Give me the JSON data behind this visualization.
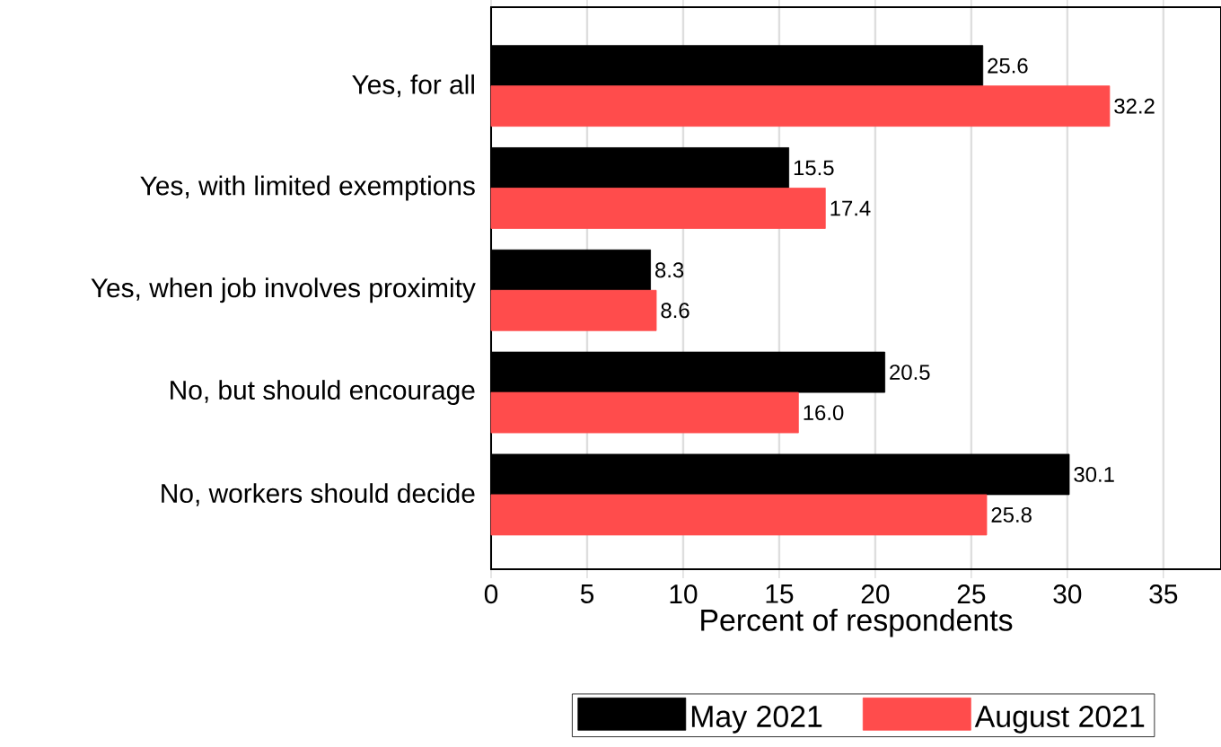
{
  "chart_data": {
    "type": "bar",
    "orientation": "horizontal",
    "xlabel": "Percent of respondents",
    "categories": [
      "Yes, for all",
      "Yes, with limited exemptions",
      "Yes, when job involves proximity",
      "No, but should encourage",
      "No, workers should decide"
    ],
    "series": [
      {
        "name": "May 2021",
        "color": "#000000",
        "values": [
          25.6,
          15.5,
          8.3,
          20.5,
          30.1
        ],
        "value_labels": [
          "25.6",
          "15.5",
          "8.3",
          "20.5",
          "30.1"
        ]
      },
      {
        "name": "August 2021",
        "color": "#ff4c4c",
        "values": [
          32.2,
          17.4,
          8.6,
          16.0,
          25.8
        ],
        "value_labels": [
          "32.2",
          "17.4",
          "8.6",
          "16.0",
          "25.8"
        ]
      }
    ],
    "xlim": [
      0,
      38
    ],
    "xticks": [
      0,
      5,
      10,
      15,
      20,
      25,
      30,
      35
    ],
    "grid": "x",
    "legend": "bottom"
  }
}
